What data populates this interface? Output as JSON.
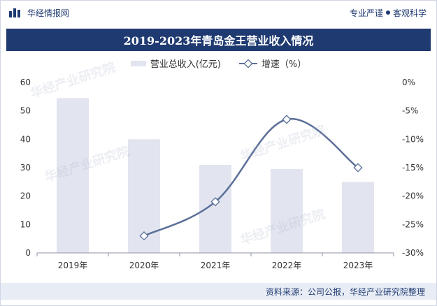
{
  "header": {
    "brand": "华经情报网",
    "slogan_left": "专业严谨",
    "slogan_right": "客观科学"
  },
  "title": "2019-2023年青岛金王营业收入情况",
  "legend": {
    "bar": "营业总收入(亿元)",
    "line": "增速（%）"
  },
  "source": "资料来源：公司公报，华经产业研究院整理",
  "colors": {
    "bar": "#e2e5ef",
    "line": "#5b6f98",
    "title_bg": "#1f3a70",
    "axis_text": "#333333"
  },
  "chart_data": {
    "type": "bar+line",
    "categories": [
      "2019年",
      "2020年",
      "2021年",
      "2022年",
      "2023年"
    ],
    "series": [
      {
        "name": "营业总收入(亿元)",
        "type": "bar",
        "axis": "left",
        "values": [
          54.5,
          40,
          31,
          29.5,
          25
        ]
      },
      {
        "name": "增速（%）",
        "type": "line",
        "axis": "right",
        "values": [
          null,
          -27,
          -21,
          -6.5,
          -15
        ]
      }
    ],
    "left_axis": {
      "ylim": [
        0,
        60
      ],
      "ticks": [
        "0",
        "10",
        "20",
        "30",
        "40",
        "50",
        "60"
      ]
    },
    "right_axis": {
      "ylim": [
        -30,
        0
      ],
      "ticks": [
        "-30%",
        "-25%",
        "-20%",
        "-15%",
        "-10%",
        "-5%",
        "0%"
      ]
    }
  }
}
